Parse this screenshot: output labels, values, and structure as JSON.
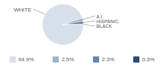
{
  "chart_data": {
    "type": "pie",
    "categories": [
      "WHITE",
      "A.I.",
      "HISPANIC",
      "BLACK"
    ],
    "values": [
      94.9,
      2.5,
      2.3,
      0.3
    ],
    "value_labels": [
      "94.9%",
      "2.5%",
      "2.3%",
      "0.3%"
    ],
    "colors": [
      "#d6dfea",
      "#a3b5cc",
      "#6a86a6",
      "#2a4d73"
    ],
    "legend": "bottom"
  }
}
